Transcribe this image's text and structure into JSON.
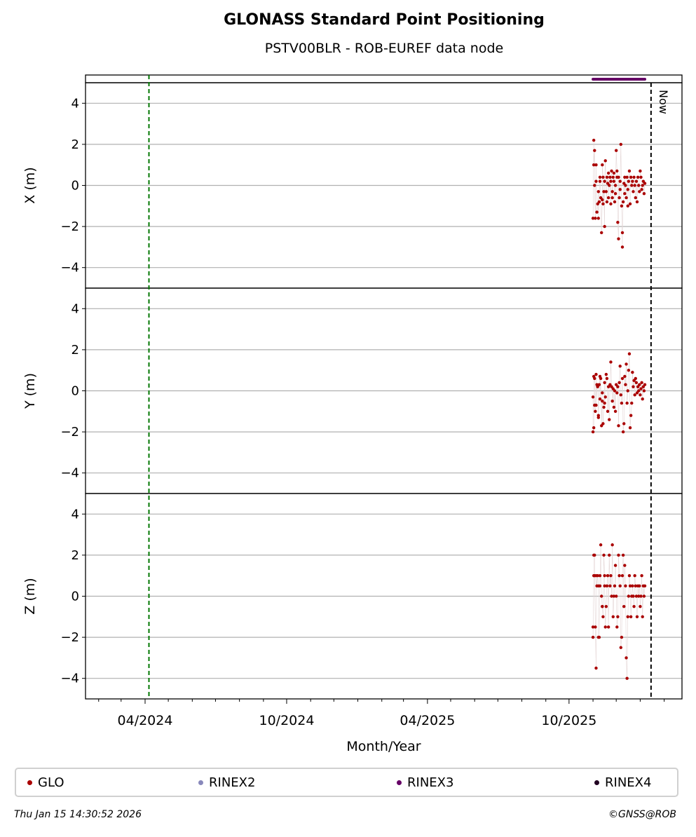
{
  "title": "GLONASS Standard Point Positioning",
  "subtitle": "PSTV00BLR - ROB-EUREF data node",
  "chart_data": {
    "type": "scatter",
    "xlabel": "Month/Year",
    "x_tick_labels": [
      "04/2024",
      "10/2024",
      "04/2025",
      "10/2025"
    ],
    "x_ticks": [
      "2024-04-01",
      "2024-10-01",
      "2025-04-01",
      "2025-10-01"
    ],
    "xlim": [
      "2024-01-15",
      "2026-02-24"
    ],
    "now_line": "2026-01-15",
    "now_label": "Now",
    "green_line": "2024-04-06",
    "rinex3_span": [
      "2025-11-01",
      "2026-01-07"
    ],
    "grid": "horizontal",
    "panels": [
      {
        "ylabel": "X (m)",
        "ylim": [
          -5,
          5
        ],
        "yticks": [
          "4",
          "2",
          "0",
          "−2",
          "−4"
        ],
        "x": [
          "2025-11-01",
          "2025-11-02",
          "2025-11-02",
          "2025-11-03",
          "2025-11-03",
          "2025-11-04",
          "2025-11-05",
          "2025-11-05",
          "2025-11-06",
          "2025-11-07",
          "2025-11-08",
          "2025-11-08",
          "2025-11-09",
          "2025-11-10",
          "2025-11-10",
          "2025-11-11",
          "2025-11-12",
          "2025-11-13",
          "2025-11-13",
          "2025-11-14",
          "2025-11-14",
          "2025-11-15",
          "2025-11-16",
          "2025-11-16",
          "2025-11-17",
          "2025-11-18",
          "2025-11-19",
          "2025-11-19",
          "2025-11-20",
          "2025-11-21",
          "2025-11-21",
          "2025-11-22",
          "2025-11-23",
          "2025-11-24",
          "2025-11-24",
          "2025-11-25",
          "2025-11-26",
          "2025-11-26",
          "2025-11-27",
          "2025-11-28",
          "2025-11-28",
          "2025-11-29",
          "2025-11-30",
          "2025-11-30",
          "2025-12-01",
          "2025-12-02",
          "2025-12-02",
          "2025-12-03",
          "2025-12-04",
          "2025-12-04",
          "2025-12-05",
          "2025-12-06",
          "2025-12-06",
          "2025-12-07",
          "2025-12-08",
          "2025-12-09",
          "2025-12-09",
          "2025-12-10",
          "2025-12-11",
          "2025-12-12",
          "2025-12-12",
          "2025-12-13",
          "2025-12-14",
          "2025-12-15",
          "2025-12-16",
          "2025-12-16",
          "2025-12-17",
          "2025-12-18",
          "2025-12-19",
          "2025-12-20",
          "2025-12-21",
          "2025-12-22",
          "2025-12-23",
          "2025-12-24",
          "2025-12-25",
          "2025-12-26",
          "2025-12-27",
          "2025-12-28",
          "2025-12-29",
          "2025-12-30",
          "2025-12-31",
          "2026-01-01",
          "2026-01-02",
          "2026-01-03",
          "2026-01-04",
          "2026-01-05",
          "2026-01-06",
          "2026-01-07"
        ],
        "y": [
          -1.6,
          2.2,
          1.0,
          1.7,
          0.0,
          -1.6,
          1.0,
          0.2,
          -1.3,
          -0.9,
          -0.3,
          -1.6,
          -0.8,
          0.4,
          0.2,
          -0.6,
          -2.3,
          -0.7,
          1.0,
          0.4,
          -0.9,
          -0.3,
          -2.0,
          0.2,
          1.2,
          -0.3,
          -0.8,
          0.4,
          0.1,
          0.6,
          -0.6,
          0.0,
          0.4,
          -0.9,
          0.2,
          0.7,
          -0.6,
          -0.3,
          0.4,
          0.2,
          0.6,
          -0.8,
          0.0,
          -0.4,
          1.7,
          0.7,
          0.4,
          -1.8,
          -2.6,
          0.4,
          -0.6,
          -0.2,
          0.2,
          2.0,
          -1.0,
          -3.0,
          -2.3,
          -0.8,
          0.1,
          -0.4,
          0.4,
          0.0,
          -0.6,
          0.4,
          -0.2,
          -1.0,
          0.2,
          0.7,
          -0.9,
          0.4,
          0.0,
          0.2,
          -0.3,
          0.4,
          0.0,
          -0.6,
          0.2,
          -0.8,
          0.4,
          0.0,
          -0.3,
          0.7,
          0.4,
          -0.2,
          0.0,
          0.2,
          -0.4,
          0.1
        ]
      },
      {
        "ylabel": "Y (m)",
        "ylim": [
          -5,
          5
        ],
        "yticks": [
          "4",
          "2",
          "0",
          "−2",
          "−4"
        ],
        "x": [
          "2025-11-01",
          "2025-11-01",
          "2025-11-02",
          "2025-11-02",
          "2025-11-03",
          "2025-11-03",
          "2025-11-04",
          "2025-11-05",
          "2025-11-05",
          "2025-11-06",
          "2025-11-07",
          "2025-11-08",
          "2025-11-08",
          "2025-11-09",
          "2025-11-10",
          "2025-11-10",
          "2025-11-11",
          "2025-11-12",
          "2025-11-13",
          "2025-11-13",
          "2025-11-14",
          "2025-11-15",
          "2025-11-16",
          "2025-11-16",
          "2025-11-17",
          "2025-11-18",
          "2025-11-19",
          "2025-11-20",
          "2025-11-21",
          "2025-11-22",
          "2025-11-23",
          "2025-11-24",
          "2025-11-25",
          "2025-11-26",
          "2025-11-27",
          "2025-11-28",
          "2025-11-29",
          "2025-11-30",
          "2025-12-01",
          "2025-12-02",
          "2025-12-03",
          "2025-12-04",
          "2025-12-05",
          "2025-12-06",
          "2025-12-07",
          "2025-12-08",
          "2025-12-09",
          "2025-12-10",
          "2025-12-11",
          "2025-12-12",
          "2025-12-13",
          "2025-12-14",
          "2025-12-15",
          "2025-12-16",
          "2025-12-17",
          "2025-12-18",
          "2025-12-19",
          "2025-12-20",
          "2025-12-21",
          "2025-12-22",
          "2025-12-23",
          "2025-12-24",
          "2025-12-25",
          "2025-12-26",
          "2025-12-27",
          "2025-12-28",
          "2025-12-29",
          "2025-12-30",
          "2025-12-31",
          "2026-01-01",
          "2026-01-02",
          "2026-01-03",
          "2026-01-04",
          "2026-01-05",
          "2026-01-06",
          "2026-01-07"
        ],
        "y": [
          -0.3,
          -2.0,
          -1.8,
          0.7,
          0.6,
          -0.7,
          -1.0,
          0.8,
          -0.7,
          0.3,
          0.2,
          -1.2,
          -1.3,
          0.3,
          0.7,
          -0.4,
          0.6,
          -1.7,
          -0.1,
          -0.5,
          -1.6,
          -0.8,
          0.4,
          -0.6,
          -0.3,
          0.8,
          0.6,
          -1.0,
          0.2,
          -1.4,
          0.3,
          1.4,
          0.2,
          -0.5,
          0.1,
          -0.8,
          0.0,
          -1.0,
          0.3,
          -0.1,
          0.2,
          -1.7,
          0.4,
          1.2,
          -0.2,
          -0.6,
          0.6,
          -2.0,
          -1.6,
          0.7,
          0.3,
          1.3,
          -0.6,
          0.0,
          1.0,
          1.8,
          -1.8,
          -1.2,
          -0.6,
          0.9,
          0.2,
          0.5,
          -0.2,
          0.6,
          0.4,
          -0.1,
          0.2,
          0.0,
          0.3,
          -0.2,
          0.1,
          0.4,
          -0.4,
          0.2,
          0.0,
          0.3
        ]
      },
      {
        "ylabel": "Z (m)",
        "ylim": [
          -5,
          5
        ],
        "yticks": [
          "4",
          "2",
          "0",
          "−2",
          "−4"
        ],
        "x": [
          "2025-11-01",
          "2025-11-01",
          "2025-11-02",
          "2025-11-02",
          "2025-11-03",
          "2025-11-03",
          "2025-11-04",
          "2025-11-05",
          "2025-11-05",
          "2025-11-06",
          "2025-11-07",
          "2025-11-08",
          "2025-11-08",
          "2025-11-09",
          "2025-11-10",
          "2025-11-10",
          "2025-11-11",
          "2025-11-12",
          "2025-11-13",
          "2025-11-13",
          "2025-11-14",
          "2025-11-15",
          "2025-11-16",
          "2025-11-16",
          "2025-11-17",
          "2025-11-18",
          "2025-11-19",
          "2025-11-20",
          "2025-11-21",
          "2025-11-22",
          "2025-11-23",
          "2025-11-24",
          "2025-11-25",
          "2025-11-26",
          "2025-11-27",
          "2025-11-28",
          "2025-11-29",
          "2025-11-30",
          "2025-12-01",
          "2025-12-02",
          "2025-12-03",
          "2025-12-04",
          "2025-12-05",
          "2025-12-06",
          "2025-12-07",
          "2025-12-08",
          "2025-12-09",
          "2025-12-10",
          "2025-12-11",
          "2025-12-12",
          "2025-12-13",
          "2025-12-14",
          "2025-12-15",
          "2025-12-16",
          "2025-12-17",
          "2025-12-18",
          "2025-12-19",
          "2025-12-20",
          "2025-12-21",
          "2025-12-22",
          "2025-12-23",
          "2025-12-24",
          "2025-12-25",
          "2025-12-26",
          "2025-12-27",
          "2025-12-28",
          "2025-12-29",
          "2025-12-30",
          "2025-12-31",
          "2026-01-01",
          "2026-01-02",
          "2026-01-03",
          "2026-01-04",
          "2026-01-05",
          "2026-01-06",
          "2026-01-07"
        ],
        "y": [
          -1.5,
          -2.0,
          1.0,
          2.0,
          2.0,
          1.0,
          -1.5,
          -3.5,
          1.0,
          0.5,
          1.0,
          0.5,
          -2.0,
          -2.0,
          1.0,
          0.5,
          2.5,
          0.0,
          -0.5,
          -0.5,
          -1.0,
          2.0,
          1.0,
          0.5,
          -1.5,
          -0.5,
          0.5,
          1.0,
          -1.5,
          2.0,
          0.5,
          1.0,
          0.0,
          2.5,
          -1.0,
          0.0,
          0.5,
          1.5,
          0.0,
          -1.5,
          -1.0,
          2.0,
          1.0,
          0.5,
          -2.5,
          -2.0,
          1.0,
          2.0,
          -0.5,
          1.5,
          0.5,
          -3.0,
          -4.0,
          -1.0,
          0.0,
          1.0,
          0.5,
          -1.0,
          0.0,
          0.5,
          0.0,
          -0.5,
          1.0,
          0.5,
          0.0,
          -1.0,
          0.5,
          0.0,
          0.5,
          -0.5,
          0.0,
          1.0,
          -1.0,
          0.5,
          0.0,
          0.5
        ]
      }
    ],
    "legend": [
      {
        "name": "GLO",
        "color": "#aa0000"
      },
      {
        "name": "RINEX2",
        "color": "#8888bb"
      },
      {
        "name": "RINEX3",
        "color": "#660066"
      },
      {
        "name": "RINEX4",
        "color": "#220022"
      }
    ],
    "legend_position": "bottom"
  },
  "footer": {
    "timestamp": "Thu Jan 15 14:30:52 2026",
    "credit": "©GNSS@ROB"
  }
}
